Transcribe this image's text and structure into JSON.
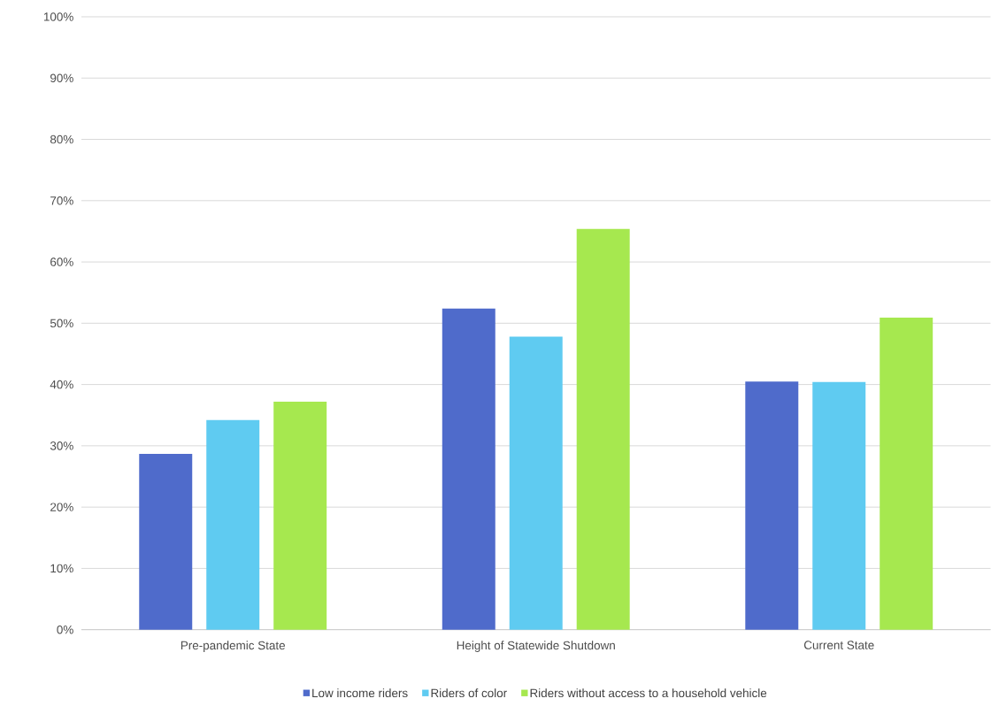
{
  "chart_data": {
    "type": "bar",
    "categories": [
      "Pre-pandemic State",
      "Height of Statewide Shutdown",
      "Current State"
    ],
    "series": [
      {
        "name": "Low income riders",
        "color": "#4f6bcb",
        "values": [
          28.7,
          52.4,
          40.5
        ]
      },
      {
        "name": "Riders of color",
        "color": "#5fcbf1",
        "values": [
          34.2,
          47.8,
          40.4
        ]
      },
      {
        "name": "Riders without access to a household vehicle",
        "color": "#a6e84f",
        "values": [
          37.2,
          65.4,
          50.9
        ]
      }
    ],
    "ylim": [
      0,
      100
    ],
    "yticks": [
      {
        "value": 0,
        "label": "0%"
      },
      {
        "value": 10,
        "label": "10%"
      },
      {
        "value": 20,
        "label": "20%"
      },
      {
        "value": 30,
        "label": "30%"
      },
      {
        "value": 40,
        "label": "40%"
      },
      {
        "value": 50,
        "label": "50%"
      },
      {
        "value": 60,
        "label": "60%"
      },
      {
        "value": 70,
        "label": "70%"
      },
      {
        "value": 80,
        "label": "80%"
      },
      {
        "value": 90,
        "label": "90%"
      },
      {
        "value": 100,
        "label": "100%"
      }
    ],
    "grid": "y",
    "legend": "bottom"
  }
}
